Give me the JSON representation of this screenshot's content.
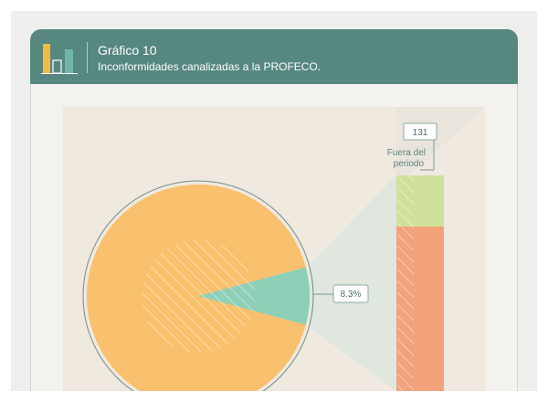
{
  "header": {
    "number": "Gráfico 10",
    "title": "Inconformidades canalizadas a la PROFECO."
  },
  "colors": {
    "header_bg": "#568880",
    "pie_main": "#f9c06e",
    "pie_slice": "#8ecfb8",
    "bar_top": "#cfe09a",
    "bar_bottom": "#f2a37b",
    "logo_yellow": "#f4b940",
    "logo_teal": "#6fb6aa"
  },
  "icons": [
    "bar-chart-logo-icon"
  ],
  "chart_data": {
    "type": "pie",
    "slices": [
      {
        "value": 91.7
      },
      {
        "value": 8.3,
        "label": "8.3%"
      }
    ],
    "breakdown_bar": {
      "segments": [
        {
          "label": "Fuera del periodo",
          "value": 131
        }
      ]
    }
  }
}
